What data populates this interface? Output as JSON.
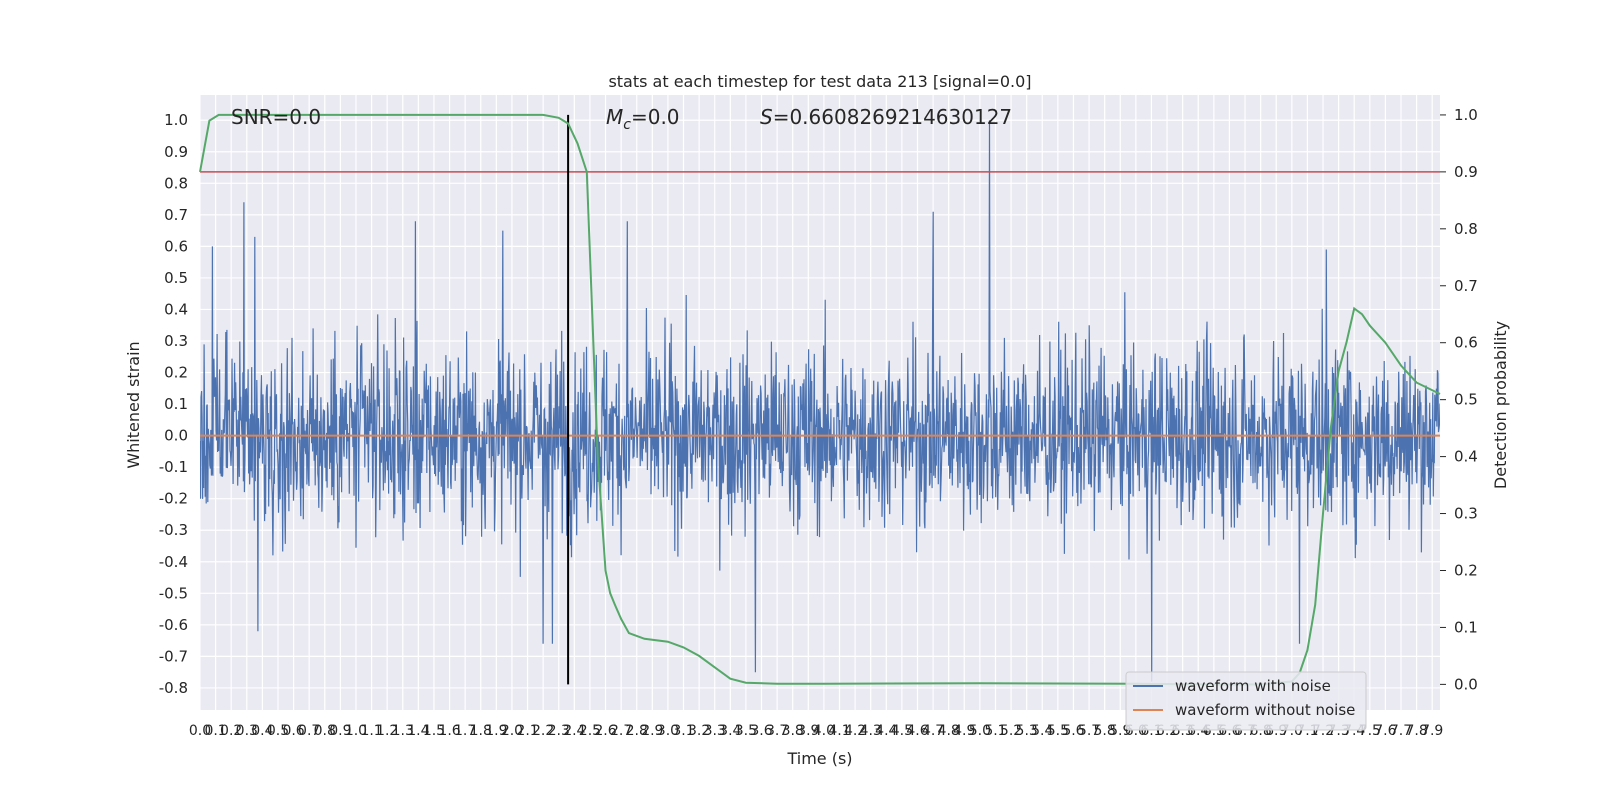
{
  "chart_data": {
    "type": "line",
    "title": "stats at each timestep for test data 213 [signal=0.0]",
    "xlabel": "Time (s)",
    "ylabel": "Whitened strain",
    "ylabel_right": "Detection probability",
    "xlim": [
      0.0,
      7.95
    ],
    "ylim": [
      -0.87,
      1.08
    ],
    "ylim_right": [
      -0.045,
      1.035
    ],
    "x_ticks": [
      "0.0",
      "0.1",
      "0.2",
      "0.3",
      "0.4",
      "0.5",
      "0.6",
      "0.7",
      "0.8",
      "0.9",
      "1.0",
      "1.1",
      "1.2",
      "1.3",
      "1.4",
      "1.5",
      "1.6",
      "1.7",
      "1.8",
      "1.9",
      "2.0",
      "2.1",
      "2.2",
      "2.3",
      "2.4",
      "2.5",
      "2.6",
      "2.7",
      "2.8",
      "2.9",
      "3.0",
      "3.1",
      "3.2",
      "3.3",
      "3.4",
      "3.5",
      "3.6",
      "3.7",
      "3.8",
      "3.9",
      "4.0",
      "4.1",
      "4.2",
      "4.3",
      "4.4",
      "4.5",
      "4.6",
      "4.7",
      "4.8",
      "4.9",
      "5.0",
      "5.1",
      "5.2",
      "5.3",
      "5.4",
      "5.5",
      "5.6",
      "5.7",
      "5.8",
      "5.9",
      "6.0",
      "6.1",
      "6.2",
      "6.3",
      "6.4",
      "6.5",
      "6.6",
      "6.7",
      "6.8",
      "6.9",
      "7.0",
      "7.1",
      "7.2",
      "7.3",
      "7.4",
      "7.5",
      "7.6",
      "7.7",
      "7.8",
      "7.9"
    ],
    "y_ticks": [
      "-0.8",
      "-0.7",
      "-0.6",
      "-0.5",
      "-0.4",
      "-0.3",
      "-0.2",
      "-0.1",
      "0.0",
      "0.1",
      "0.2",
      "0.3",
      "0.4",
      "0.5",
      "0.6",
      "0.7",
      "0.8",
      "0.9",
      "1.0"
    ],
    "y_ticks_right": [
      "0.0",
      "0.1",
      "0.2",
      "0.3",
      "0.4",
      "0.5",
      "0.6",
      "0.7",
      "0.8",
      "0.9",
      "1.0"
    ],
    "grid": true,
    "legend_position": "lower-right",
    "legend": [
      "waveform with noise",
      "waveform without noise"
    ],
    "annotations": {
      "snr": "SNR=0.0",
      "mc_symbol": "M",
      "mc_sub": "c",
      "mc_value": "=0.0",
      "s_symbol": "S",
      "s_value": "=0.6608269214630127"
    },
    "vline_x": 2.36,
    "threshold": 0.9,
    "series": [
      {
        "name": "waveform with noise",
        "color": "#4c72b0",
        "axis": "left",
        "envelope_max": 1.0,
        "peaks": [
          {
            "x": 0.08,
            "y": 0.6
          },
          {
            "x": 0.28,
            "y": 0.74
          },
          {
            "x": 0.35,
            "y": 0.63
          },
          {
            "x": 1.38,
            "y": 0.68
          },
          {
            "x": 1.94,
            "y": 0.65
          },
          {
            "x": 2.74,
            "y": 0.68
          },
          {
            "x": 4.7,
            "y": 0.71
          },
          {
            "x": 5.06,
            "y": 1.0
          },
          {
            "x": 7.22,
            "y": 0.59
          },
          {
            "x": 0.37,
            "y": -0.62
          },
          {
            "x": 2.2,
            "y": -0.66
          },
          {
            "x": 2.26,
            "y": -0.66
          },
          {
            "x": 3.56,
            "y": -0.75
          },
          {
            "x": 6.1,
            "y": -0.78
          },
          {
            "x": 7.05,
            "y": -0.66
          }
        ]
      },
      {
        "name": "waveform without noise",
        "color": "#dd8452",
        "axis": "left",
        "x": [
          0.0,
          7.95
        ],
        "y": [
          0.0,
          0.0
        ]
      },
      {
        "name": "detection probability",
        "color": "#55a868",
        "axis": "right",
        "x": [
          0.0,
          0.06,
          0.12,
          0.3,
          1.0,
          2.0,
          2.2,
          2.3,
          2.36,
          2.42,
          2.48,
          2.55,
          2.6,
          2.63,
          2.66,
          2.7,
          2.75,
          2.85,
          3.0,
          3.1,
          3.2,
          3.3,
          3.4,
          3.5,
          3.7,
          4.0,
          5.0,
          6.0,
          6.5,
          6.8,
          7.0,
          7.05,
          7.1,
          7.15,
          7.2,
          7.25,
          7.3,
          7.35,
          7.4,
          7.45,
          7.5,
          7.6,
          7.7,
          7.8,
          7.95
        ],
        "y": [
          0.9,
          0.99,
          1.0,
          1.0,
          1.0,
          1.0,
          1.0,
          0.995,
          0.985,
          0.95,
          0.9,
          0.4,
          0.2,
          0.16,
          0.14,
          0.115,
          0.09,
          0.08,
          0.075,
          0.065,
          0.05,
          0.03,
          0.01,
          0.003,
          0.001,
          0.001,
          0.002,
          0.001,
          0.0,
          0.0,
          0.005,
          0.02,
          0.06,
          0.14,
          0.3,
          0.45,
          0.55,
          0.6,
          0.66,
          0.65,
          0.63,
          0.6,
          0.56,
          0.53,
          0.51
        ]
      }
    ]
  }
}
